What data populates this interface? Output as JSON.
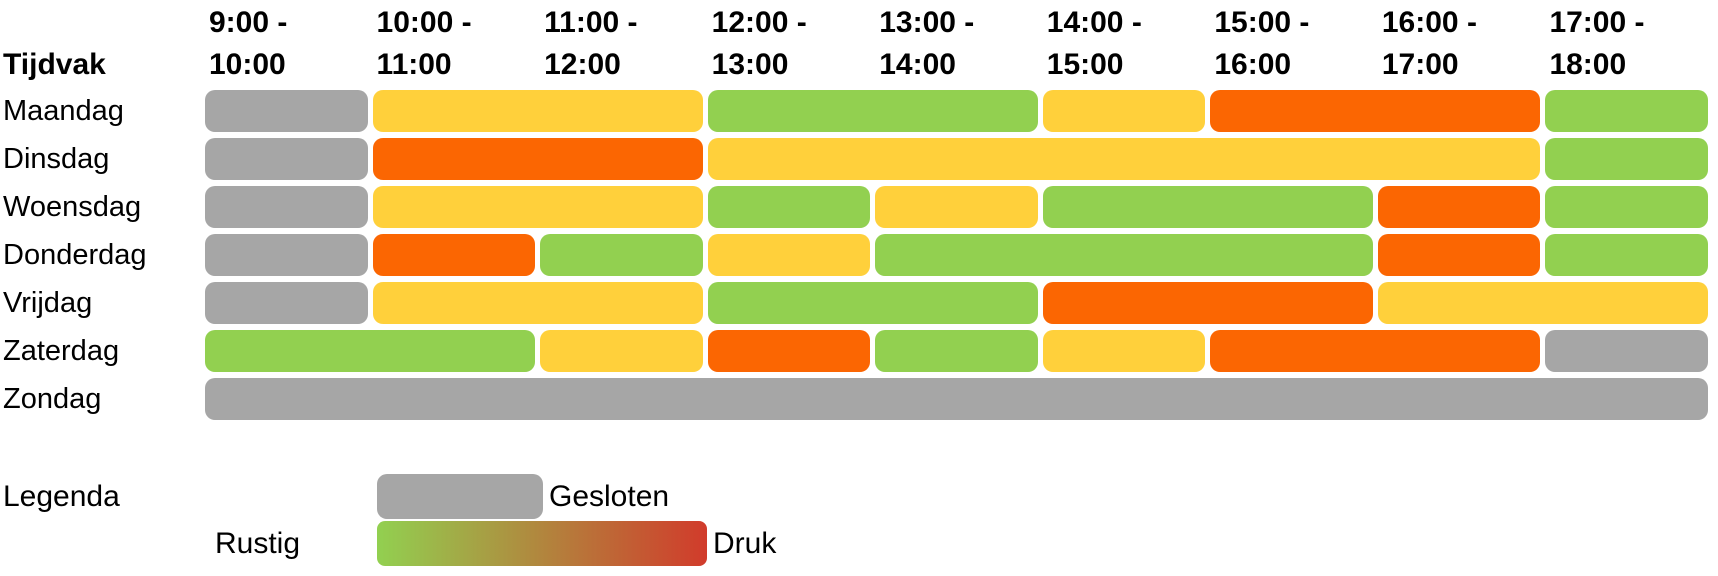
{
  "chart_data": {
    "type": "heatmap",
    "title": "",
    "corner_label": "Tijdvak",
    "columns": [
      {
        "line1": "9:00 -",
        "line2": "10:00"
      },
      {
        "line1": "10:00 -",
        "line2": "11:00"
      },
      {
        "line1": "11:00 -",
        "line2": "12:00"
      },
      {
        "line1": "12:00 -",
        "line2": "13:00"
      },
      {
        "line1": "13:00 -",
        "line2": "14:00"
      },
      {
        "line1": "14:00 -",
        "line2": "15:00"
      },
      {
        "line1": "15:00 -",
        "line2": "16:00"
      },
      {
        "line1": "16:00 -",
        "line2": "17:00"
      },
      {
        "line1": "17:00 -",
        "line2": "18:00"
      }
    ],
    "rows": [
      {
        "label": "Maandag",
        "cells": [
          "closed",
          "moderate",
          "moderate",
          "quiet",
          "quiet",
          "moderate",
          "busy",
          "busy",
          "quiet"
        ]
      },
      {
        "label": "Dinsdag",
        "cells": [
          "closed",
          "busy",
          "busy",
          "moderate",
          "moderate",
          "moderate",
          "moderate",
          "moderate",
          "quiet"
        ]
      },
      {
        "label": "Woensdag",
        "cells": [
          "closed",
          "moderate",
          "moderate",
          "quiet",
          "moderate",
          "quiet",
          "quiet",
          "busy",
          "quiet"
        ]
      },
      {
        "label": "Donderdag",
        "cells": [
          "closed",
          "busy",
          "quiet",
          "moderate",
          "quiet",
          "quiet",
          "quiet",
          "busy",
          "quiet"
        ]
      },
      {
        "label": "Vrijdag",
        "cells": [
          "closed",
          "moderate",
          "moderate",
          "quiet",
          "quiet",
          "busy",
          "busy",
          "moderate",
          "moderate"
        ]
      },
      {
        "label": "Zaterdag",
        "cells": [
          "quiet",
          "quiet",
          "moderate",
          "busy",
          "quiet",
          "moderate",
          "busy",
          "busy",
          "closed"
        ]
      },
      {
        "label": "Zondag",
        "cells": [
          "closed",
          "closed",
          "closed",
          "closed",
          "closed",
          "closed",
          "closed",
          "closed",
          "closed"
        ]
      }
    ],
    "status_colors": {
      "closed": "#A6A6A6",
      "quiet": "#92D050",
      "moderate": "#FFD03B",
      "busy": "#FB6602"
    },
    "legend": {
      "title": "Legenda",
      "closed_label": "Gesloten",
      "scale_min_label": "Rustig",
      "scale_max_label": "Druk",
      "gradient": [
        "#92D050",
        "#D13B2B"
      ]
    }
  }
}
